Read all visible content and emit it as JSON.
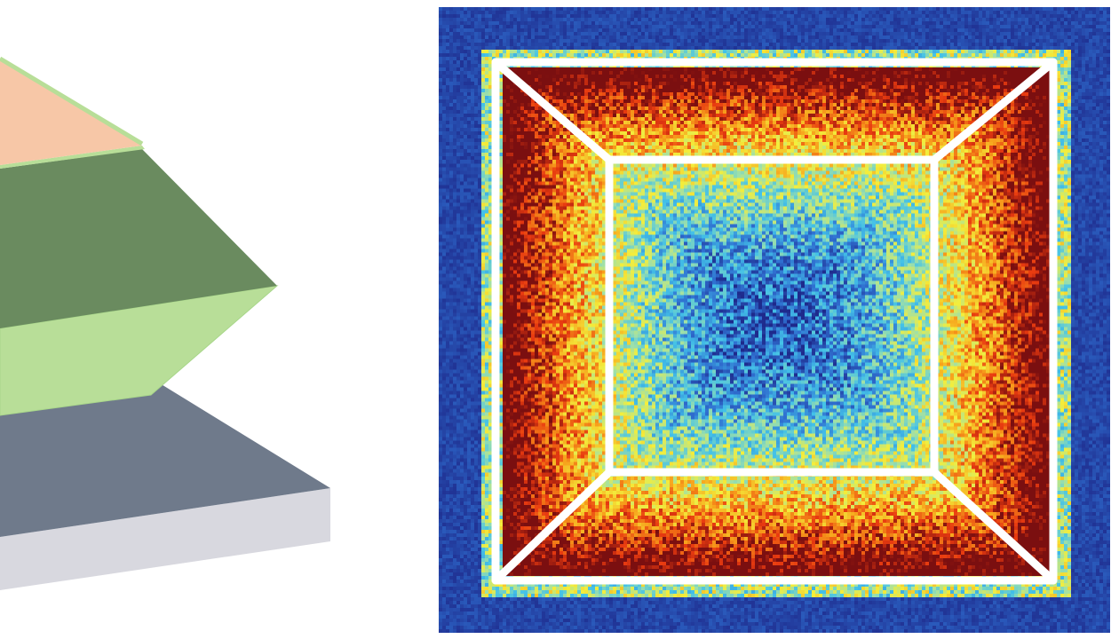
{
  "figure": {
    "left_panel": {
      "layers": [
        {
          "name": "top-layer-face",
          "color": "#f8c8a8"
        },
        {
          "name": "middle-layer-top-face",
          "color": "#6b8c60"
        },
        {
          "name": "middle-layer-side-face",
          "color": "#b9df9a"
        },
        {
          "name": "substrate-top-face",
          "color": "#707b8c"
        },
        {
          "name": "substrate-side-face",
          "color": "#d9d9e0"
        }
      ]
    },
    "right_panel": {
      "colormap": [
        "#1e2a8c",
        "#2f6fd0",
        "#43c1e8",
        "#9fe0a8",
        "#f3ee3c",
        "#f7a21c",
        "#e83a10",
        "#7b0f10"
      ],
      "background_color": "#1e2a8c",
      "outline_color": "#ffffff"
    }
  }
}
